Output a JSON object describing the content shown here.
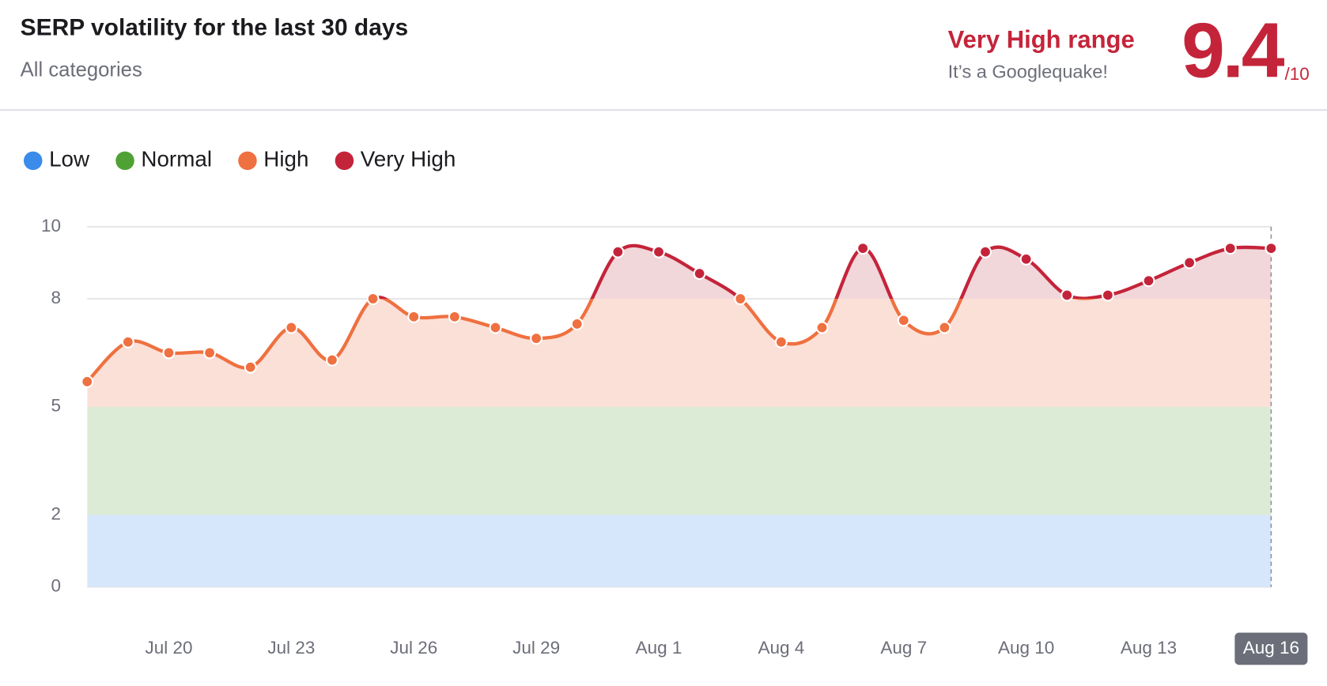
{
  "header": {
    "title": "SERP volatility for the last 30 days",
    "subtitle": "All categories",
    "range_label": "Very High range",
    "range_note": "It’s a Googlequake!",
    "score": 9.4,
    "score_suffix": "/10"
  },
  "chart_data": {
    "type": "area",
    "categories": [
      null,
      null,
      "Jul 20",
      null,
      null,
      "Jul 23",
      null,
      null,
      "Jul 26",
      null,
      null,
      "Jul 29",
      null,
      null,
      "Aug 1",
      null,
      null,
      "Aug 4",
      null,
      null,
      "Aug 7",
      null,
      null,
      "Aug 10",
      null,
      null,
      "Aug 13",
      null,
      null,
      "Aug 16"
    ],
    "values": [
      5.7,
      6.8,
      6.5,
      6.5,
      6.1,
      7.2,
      6.3,
      8.0,
      7.5,
      7.5,
      7.2,
      6.9,
      7.3,
      9.3,
      9.3,
      8.7,
      8.0,
      6.8,
      7.2,
      9.4,
      7.4,
      7.2,
      9.3,
      9.1,
      8.1,
      8.1,
      8.5,
      9.0,
      9.4,
      9.4
    ],
    "bands": [
      {
        "name": "Low",
        "from": 0,
        "to": 2,
        "color": "#3b8beb",
        "fill": "#d6e6fb"
      },
      {
        "name": "Normal",
        "from": 2,
        "to": 5,
        "color": "#4fa134",
        "fill": "#dcebd6"
      },
      {
        "name": "High",
        "from": 5,
        "to": 8,
        "color": "#ef7040",
        "fill": "#fbe0d7"
      },
      {
        "name": "Very High",
        "from": 8,
        "to": 10,
        "color": "#c4243a",
        "fill": "#f1d6da"
      }
    ],
    "ylim": [
      0,
      10
    ],
    "yticks": [
      0,
      2,
      5,
      8,
      10
    ],
    "grid": true,
    "highlight_index": 29
  }
}
